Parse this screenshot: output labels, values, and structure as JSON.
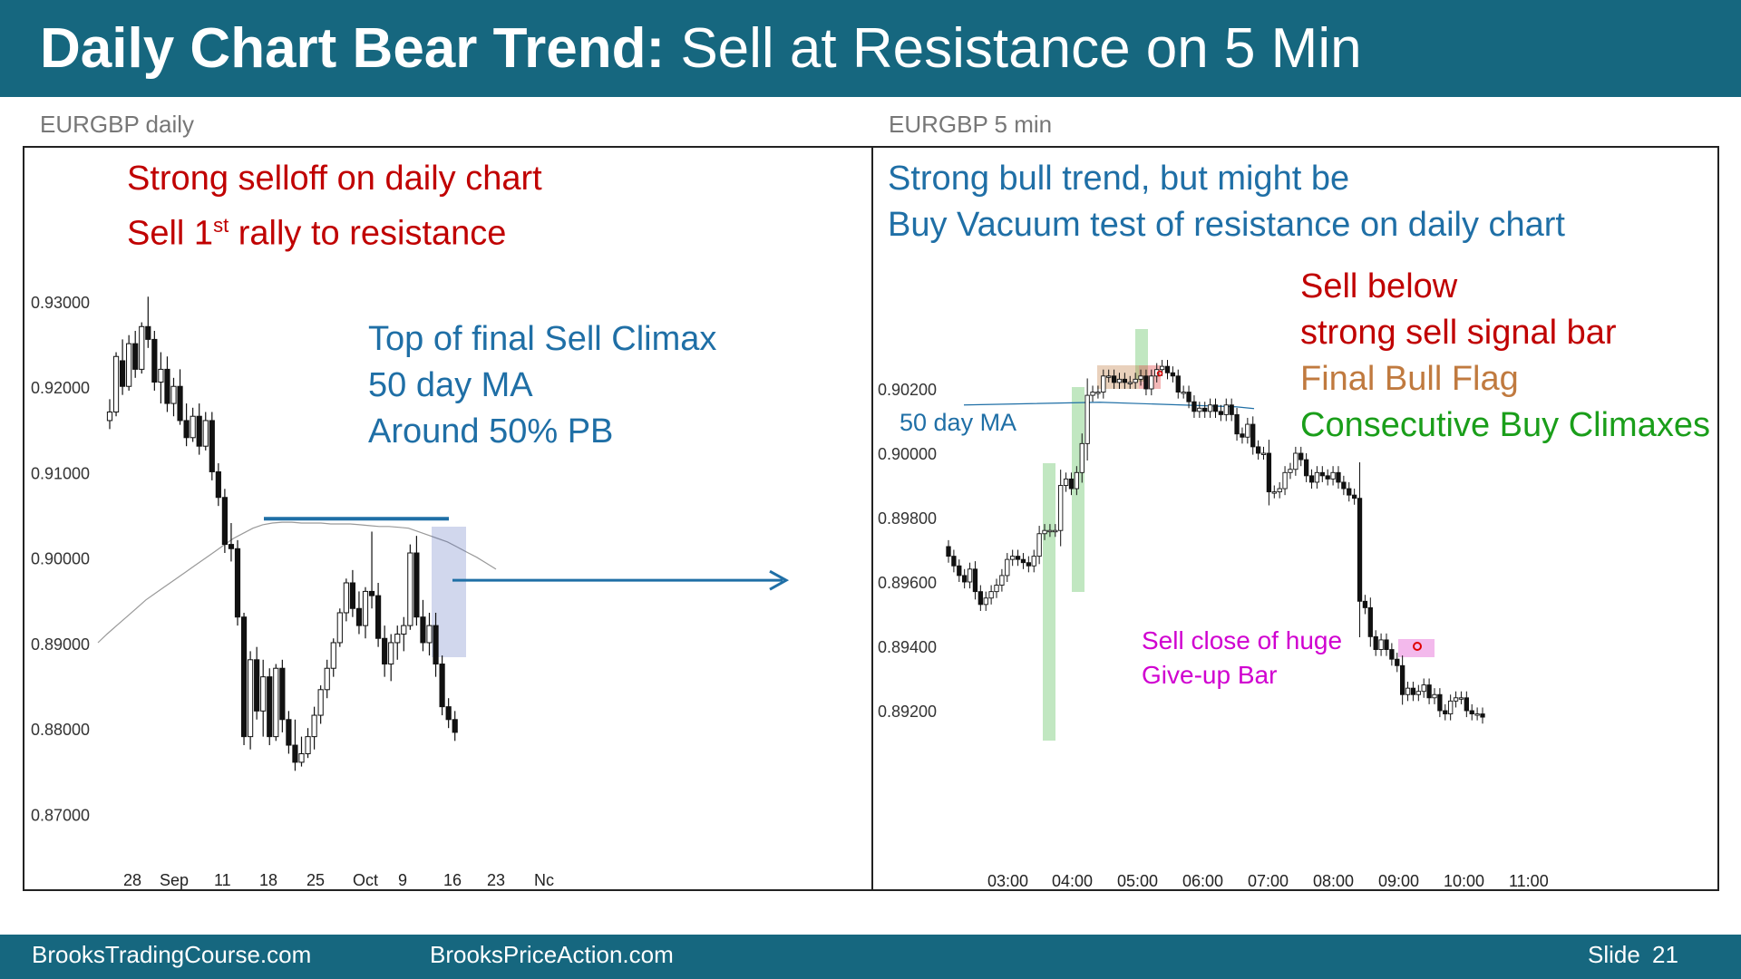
{
  "slide": {
    "title_bold": "Daily Chart Bear Trend:",
    "title_rest": " Sell at Resistance on 5 Min",
    "footer_left": "BrooksTradingCourse.com",
    "footer_mid": "BrooksPriceAction.com",
    "slide_label": "Slide",
    "slide_number": "21"
  },
  "left": {
    "label": "EURGBP daily",
    "annot1_line1": "Strong selloff on daily chart",
    "annot1_line2_pre": "Sell 1",
    "annot1_line2_sup": "st",
    "annot1_line2_post": " rally to resistance",
    "annot2_line1": "Top of final Sell Climax",
    "annot2_line2": "50 day MA",
    "annot2_line3": "Around 50% PB"
  },
  "right": {
    "label": "EURGBP 5 min",
    "annot1_line1": "Strong bull trend, but might be",
    "annot1_line2": "Buy Vacuum test of resistance on daily chart",
    "sell_below": "Sell below",
    "sell_signal": "strong sell signal bar",
    "final_flag": "Final Bull Flag",
    "buy_climaxes": "Consecutive Buy Climaxes",
    "ma_label": "50 day MA",
    "give_up_line1": "Sell close of huge",
    "give_up_line2": "Give-up Bar"
  },
  "colors": {
    "header": "#16677f",
    "red_text": "#c00000",
    "blue_text": "#1f6fa6",
    "orange_text": "#c07a3f",
    "green_text": "#1a9e1a",
    "magenta_text": "#d000d0"
  },
  "chart_data": [
    {
      "type": "candlestick",
      "title": "EURGBP daily",
      "y_ticks": [
        "0.93000",
        "0.92000",
        "0.91000",
        "0.90000",
        "0.89000",
        "0.88000",
        "0.87000"
      ],
      "ylim": [
        0.8675,
        0.9325
      ],
      "x_ticks": [
        "28",
        "Sep",
        "11",
        "18",
        "25",
        "Oct",
        "9",
        "16",
        "23",
        "Nc"
      ],
      "resistance_level": 0.9045,
      "breakdown_level": 0.8973,
      "ohlc": [
        [
          0.916,
          0.9185,
          0.915,
          0.917
        ],
        [
          0.917,
          0.924,
          0.9165,
          0.9235
        ],
        [
          0.923,
          0.9255,
          0.919,
          0.92
        ],
        [
          0.92,
          0.926,
          0.9195,
          0.925
        ],
        [
          0.925,
          0.9265,
          0.921,
          0.922
        ],
        [
          0.922,
          0.9275,
          0.9215,
          0.927
        ],
        [
          0.927,
          0.9305,
          0.9245,
          0.9255
        ],
        [
          0.9255,
          0.9265,
          0.9195,
          0.9205
        ],
        [
          0.9205,
          0.924,
          0.918,
          0.922
        ],
        [
          0.922,
          0.9235,
          0.917,
          0.918
        ],
        [
          0.918,
          0.921,
          0.9165,
          0.92
        ],
        [
          0.92,
          0.922,
          0.9155,
          0.916
        ],
        [
          0.916,
          0.918,
          0.913,
          0.914
        ],
        [
          0.914,
          0.9175,
          0.9135,
          0.9165
        ],
        [
          0.9165,
          0.918,
          0.912,
          0.913
        ],
        [
          0.913,
          0.917,
          0.9125,
          0.916
        ],
        [
          0.916,
          0.917,
          0.909,
          0.91
        ],
        [
          0.91,
          0.911,
          0.906,
          0.907
        ],
        [
          0.907,
          0.908,
          0.9005,
          0.9015
        ],
        [
          0.9015,
          0.904,
          0.8995,
          0.901
        ],
        [
          0.901,
          0.902,
          0.892,
          0.893
        ],
        [
          0.893,
          0.8935,
          0.878,
          0.879
        ],
        [
          0.879,
          0.889,
          0.8775,
          0.888
        ],
        [
          0.888,
          0.8895,
          0.881,
          0.882
        ],
        [
          0.882,
          0.888,
          0.879,
          0.886
        ],
        [
          0.886,
          0.887,
          0.878,
          0.879
        ],
        [
          0.879,
          0.8875,
          0.8785,
          0.887
        ],
        [
          0.887,
          0.888,
          0.8795,
          0.881
        ],
        [
          0.881,
          0.882,
          0.877,
          0.878
        ],
        [
          0.878,
          0.881,
          0.875,
          0.876
        ],
        [
          0.876,
          0.879,
          0.8755,
          0.877
        ],
        [
          0.877,
          0.88,
          0.8765,
          0.879
        ],
        [
          0.879,
          0.8825,
          0.8775,
          0.8815
        ],
        [
          0.8815,
          0.885,
          0.8805,
          0.8845
        ],
        [
          0.8845,
          0.888,
          0.8835,
          0.887
        ],
        [
          0.887,
          0.8905,
          0.886,
          0.89
        ],
        [
          0.89,
          0.894,
          0.8895,
          0.8935
        ],
        [
          0.8935,
          0.8975,
          0.8925,
          0.897
        ],
        [
          0.897,
          0.8985,
          0.893,
          0.894
        ],
        [
          0.894,
          0.896,
          0.891,
          0.892
        ],
        [
          0.892,
          0.8965,
          0.8905,
          0.896
        ],
        [
          0.896,
          0.903,
          0.894,
          0.8955
        ],
        [
          0.8955,
          0.897,
          0.8895,
          0.8905
        ],
        [
          0.8905,
          0.892,
          0.886,
          0.8875
        ],
        [
          0.8875,
          0.891,
          0.8855,
          0.89
        ],
        [
          0.89,
          0.892,
          0.888,
          0.891
        ],
        [
          0.891,
          0.893,
          0.889,
          0.892
        ],
        [
          0.892,
          0.9015,
          0.8915,
          0.9005
        ],
        [
          0.9005,
          0.9025,
          0.892,
          0.893
        ],
        [
          0.893,
          0.895,
          0.889,
          0.89
        ],
        [
          0.89,
          0.8935,
          0.8885,
          0.892
        ],
        [
          0.892,
          0.8935,
          0.886,
          0.8875
        ],
        [
          0.8875,
          0.8885,
          0.8815,
          0.8825
        ],
        [
          0.8825,
          0.8835,
          0.88,
          0.881
        ],
        [
          0.881,
          0.882,
          0.8785,
          0.8795
        ]
      ],
      "ma_50": [
        0.891,
        0.892,
        0.893,
        0.894,
        0.895,
        0.8958,
        0.8966,
        0.8974,
        0.8982,
        0.899,
        0.8998,
        0.9006,
        0.9014,
        0.9022,
        0.9028,
        0.9034,
        0.9038,
        0.904,
        0.9041,
        0.9041,
        0.904,
        0.904,
        0.904,
        0.9039,
        0.9039,
        0.9039,
        0.9038,
        0.9037,
        0.9036,
        0.9036,
        0.9035,
        0.9034,
        0.903,
        0.9026,
        0.9022,
        0.9018,
        0.9012,
        0.9006,
        0.9,
        0.8993,
        0.8986
      ],
      "ma_start_bar": 0
    },
    {
      "type": "candlestick",
      "title": "EURGBP 5 min",
      "y_ticks": [
        "0.90200",
        "0.90000",
        "0.89800",
        "0.89600",
        "0.89400",
        "0.89200"
      ],
      "y_tick_values": [
        0.902,
        0.9,
        0.898,
        0.896,
        0.894,
        0.892
      ],
      "ylim": [
        0.8905,
        0.9036
      ],
      "x_ticks": [
        "03:00",
        "04:00",
        "05:00",
        "06:00",
        "07:00",
        "08:00",
        "09:00",
        "10:00",
        "11:00"
      ],
      "ma_50_level": 0.9015,
      "closes": [
        0.8968,
        0.8965,
        0.8962,
        0.896,
        0.8964,
        0.8957,
        0.8953,
        0.8955,
        0.8957,
        0.8959,
        0.8962,
        0.8967,
        0.8968,
        0.8967,
        0.8966,
        0.8965,
        0.8968,
        0.8975,
        0.8976,
        0.8976,
        0.8976,
        0.899,
        0.8992,
        0.8989,
        0.8994,
        0.9003,
        0.9018,
        0.9019,
        0.9019,
        0.9024,
        0.9024,
        0.9022,
        0.9023,
        0.9022,
        0.9022,
        0.9023,
        0.9024,
        0.902,
        0.9024,
        0.9026,
        0.9027,
        0.9025,
        0.9024,
        0.9019,
        0.9019,
        0.9016,
        0.9013,
        0.9014,
        0.9013,
        0.9015,
        0.9013,
        0.9012,
        0.9015,
        0.9012,
        0.9006,
        0.9005,
        0.9009,
        0.9002,
        0.9,
        0.9,
        0.8988,
        0.8988,
        0.8989,
        0.8994,
        0.8995,
        0.9,
        0.8998,
        0.8993,
        0.8991,
        0.8994,
        0.8993,
        0.8992,
        0.8994,
        0.8991,
        0.8989,
        0.8987,
        0.8986,
        0.8954,
        0.8952,
        0.8943,
        0.8939,
        0.8942,
        0.8939,
        0.8936,
        0.8934,
        0.8925,
        0.8927,
        0.8925,
        0.8926,
        0.8928,
        0.8924,
        0.8925,
        0.892,
        0.8919,
        0.8923,
        0.8924,
        0.8924,
        0.892,
        0.8919,
        0.8919,
        0.8918
      ]
    }
  ]
}
